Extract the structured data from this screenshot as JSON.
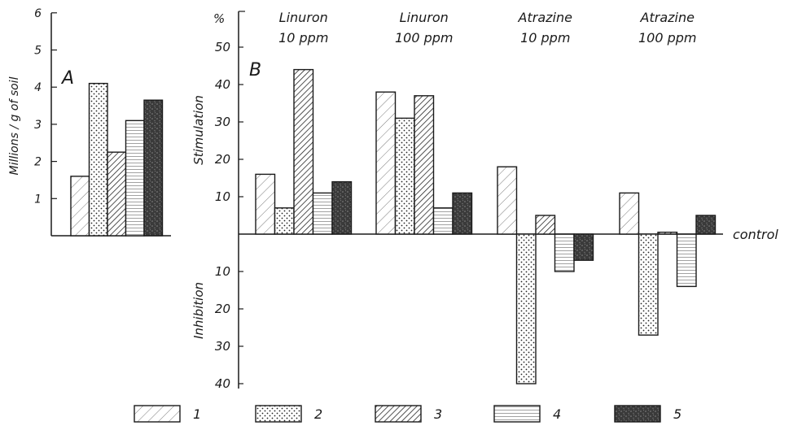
{
  "chart_data": [
    {
      "type": "bar",
      "panel_label": "A",
      "ylabel": "Millions / g of soil",
      "ylim": [
        0,
        6
      ],
      "yticks": [
        "1",
        "2",
        "3",
        "4",
        "5",
        "6"
      ],
      "categories": [
        "1",
        "2",
        "3",
        "4",
        "5"
      ],
      "values": [
        1.6,
        4.1,
        2.25,
        3.1,
        3.65
      ]
    },
    {
      "type": "bar",
      "panel_label": "B",
      "unit_label": "%",
      "ylim": [
        -40,
        55
      ],
      "yticks_pos": [
        "10",
        "20",
        "30",
        "40",
        "50"
      ],
      "yticks_neg": [
        "10",
        "20",
        "30",
        "40"
      ],
      "stim_label": "Stimulation",
      "inhib_label": "Inhibition",
      "baseline_label": "control",
      "groups": [
        {
          "line1": "Linuron",
          "line2": "10 ppm",
          "values": [
            16,
            7,
            44,
            11,
            14
          ]
        },
        {
          "line1": "Linuron",
          "line2": "100 ppm",
          "values": [
            38,
            31,
            37,
            7,
            11
          ]
        },
        {
          "line1": "Atrazine",
          "line2": "10 ppm",
          "values": [
            18,
            -40,
            5,
            -10,
            -7
          ]
        },
        {
          "line1": "Atrazine",
          "line2": "100 ppm",
          "values": [
            11,
            -27,
            0.5,
            -14,
            5
          ]
        }
      ]
    }
  ],
  "legend": [
    {
      "label": "1",
      "pattern": "hatch-light"
    },
    {
      "label": "2",
      "pattern": "dots"
    },
    {
      "label": "3",
      "pattern": "hatch-dense"
    },
    {
      "label": "4",
      "pattern": "horizontal"
    },
    {
      "label": "5",
      "pattern": "dark"
    }
  ]
}
